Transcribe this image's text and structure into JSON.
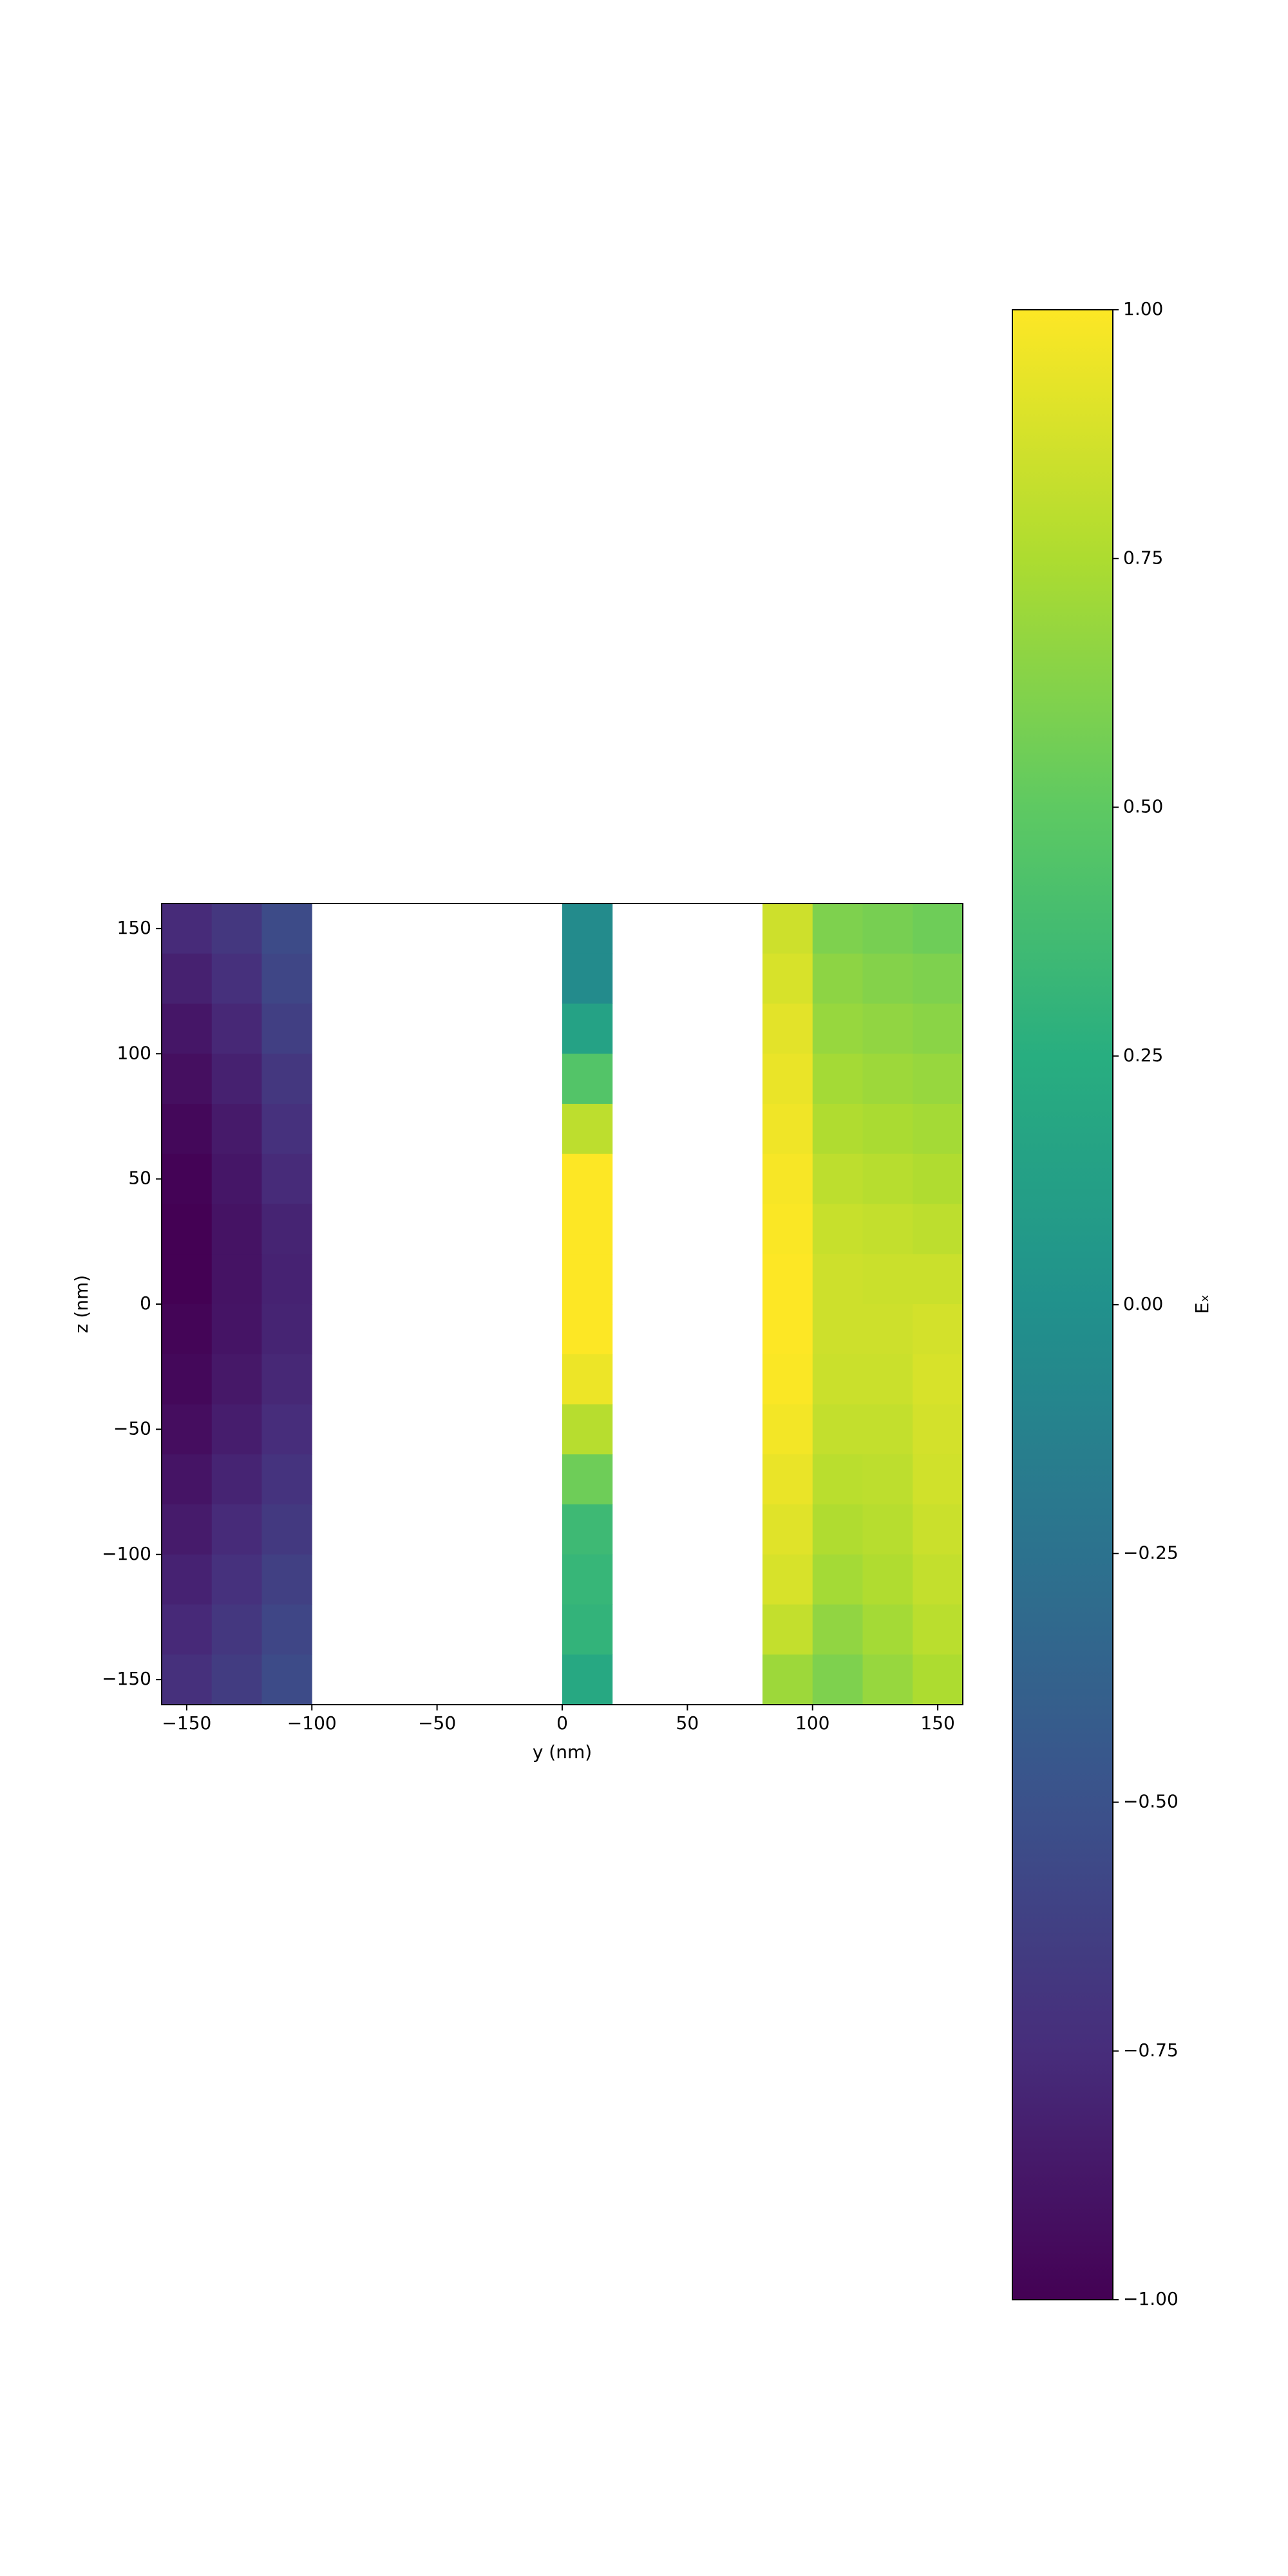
{
  "chart_data": {
    "type": "heatmap",
    "colormap": "viridis",
    "xlabel": "y (nm)",
    "ylabel": "z (nm)",
    "colorbar_label": "Eₓ",
    "xlim": [
      -160,
      160
    ],
    "ylim": [
      -160,
      160
    ],
    "clim": [
      -1,
      1
    ],
    "xticks": [
      {
        "value": -150,
        "label": "−150"
      },
      {
        "value": -100,
        "label": "−100"
      },
      {
        "value": -50,
        "label": "−50"
      },
      0,
      50,
      100,
      150
    ],
    "yticks": [
      {
        "value": -150,
        "label": "−150"
      },
      {
        "value": -100,
        "label": "−100"
      },
      {
        "value": -50,
        "label": "−50"
      },
      0,
      50,
      100,
      150
    ],
    "cticks": [
      {
        "value": -1,
        "label": "−1.00"
      },
      {
        "value": -0.75,
        "label": "−0.75"
      },
      {
        "value": -0.5,
        "label": "−0.50"
      },
      {
        "value": -0.25,
        "label": "−0.25"
      },
      {
        "value": 0,
        "label": "0.00"
      },
      {
        "value": 0.25,
        "label": "0.25"
      },
      {
        "value": 0.5,
        "label": "0.50"
      },
      {
        "value": 0.75,
        "label": "0.75"
      },
      {
        "value": 1,
        "label": "1.00"
      }
    ],
    "x": [
      -150,
      -130,
      -110,
      -90,
      -70,
      -50,
      -30,
      -10,
      10,
      30,
      50,
      70,
      90,
      110,
      130,
      150
    ],
    "y": [
      150,
      130,
      110,
      90,
      70,
      50,
      30,
      10,
      -10,
      -30,
      -50,
      -70,
      -90,
      -110,
      -130,
      -150
    ],
    "values": [
      [
        -0.76,
        -0.68,
        -0.55,
        null,
        null,
        null,
        null,
        null,
        -0.05,
        null,
        null,
        null,
        0.85,
        0.6,
        0.58,
        0.55
      ],
      [
        -0.82,
        -0.73,
        -0.58,
        null,
        null,
        null,
        null,
        null,
        -0.05,
        null,
        null,
        null,
        0.88,
        0.65,
        0.62,
        0.6
      ],
      [
        -0.88,
        -0.78,
        -0.63,
        null,
        null,
        null,
        null,
        null,
        0.15,
        null,
        null,
        null,
        0.92,
        0.68,
        0.66,
        0.64
      ],
      [
        -0.92,
        -0.82,
        -0.68,
        null,
        null,
        null,
        null,
        null,
        0.45,
        null,
        null,
        null,
        0.94,
        0.72,
        0.7,
        0.68
      ],
      [
        -0.96,
        -0.86,
        -0.72,
        null,
        null,
        null,
        null,
        null,
        0.8,
        null,
        null,
        null,
        0.96,
        0.76,
        0.74,
        0.72
      ],
      [
        -0.99,
        -0.88,
        -0.76,
        null,
        null,
        null,
        null,
        null,
        1.0,
        null,
        null,
        null,
        0.98,
        0.8,
        0.78,
        0.76
      ],
      [
        -1.0,
        -0.9,
        -0.8,
        null,
        null,
        null,
        null,
        null,
        1.0,
        null,
        null,
        null,
        0.99,
        0.83,
        0.82,
        0.8
      ],
      [
        -1.0,
        -0.9,
        -0.81,
        null,
        null,
        null,
        null,
        null,
        1.0,
        null,
        null,
        null,
        1.0,
        0.85,
        0.84,
        0.84
      ],
      [
        -0.98,
        -0.89,
        -0.8,
        null,
        null,
        null,
        null,
        null,
        1.0,
        null,
        null,
        null,
        1.0,
        0.85,
        0.85,
        0.87
      ],
      [
        -0.96,
        -0.87,
        -0.78,
        null,
        null,
        null,
        null,
        null,
        0.95,
        null,
        null,
        null,
        0.99,
        0.84,
        0.84,
        0.88
      ],
      [
        -0.93,
        -0.84,
        -0.75,
        null,
        null,
        null,
        null,
        null,
        0.78,
        null,
        null,
        null,
        0.97,
        0.82,
        0.82,
        0.87
      ],
      [
        -0.89,
        -0.8,
        -0.71,
        null,
        null,
        null,
        null,
        null,
        0.55,
        null,
        null,
        null,
        0.94,
        0.79,
        0.8,
        0.86
      ],
      [
        -0.85,
        -0.76,
        -0.67,
        null,
        null,
        null,
        null,
        null,
        0.35,
        null,
        null,
        null,
        0.91,
        0.76,
        0.78,
        0.84
      ],
      [
        -0.81,
        -0.72,
        -0.62,
        null,
        null,
        null,
        null,
        null,
        0.32,
        null,
        null,
        null,
        0.88,
        0.72,
        0.76,
        0.82
      ],
      [
        -0.77,
        -0.68,
        -0.58,
        null,
        null,
        null,
        null,
        null,
        0.3,
        null,
        null,
        null,
        0.82,
        0.66,
        0.72,
        0.79
      ],
      [
        -0.73,
        -0.65,
        -0.55,
        null,
        null,
        null,
        null,
        null,
        0.2,
        null,
        null,
        null,
        0.7,
        0.6,
        0.68,
        0.75
      ]
    ]
  }
}
